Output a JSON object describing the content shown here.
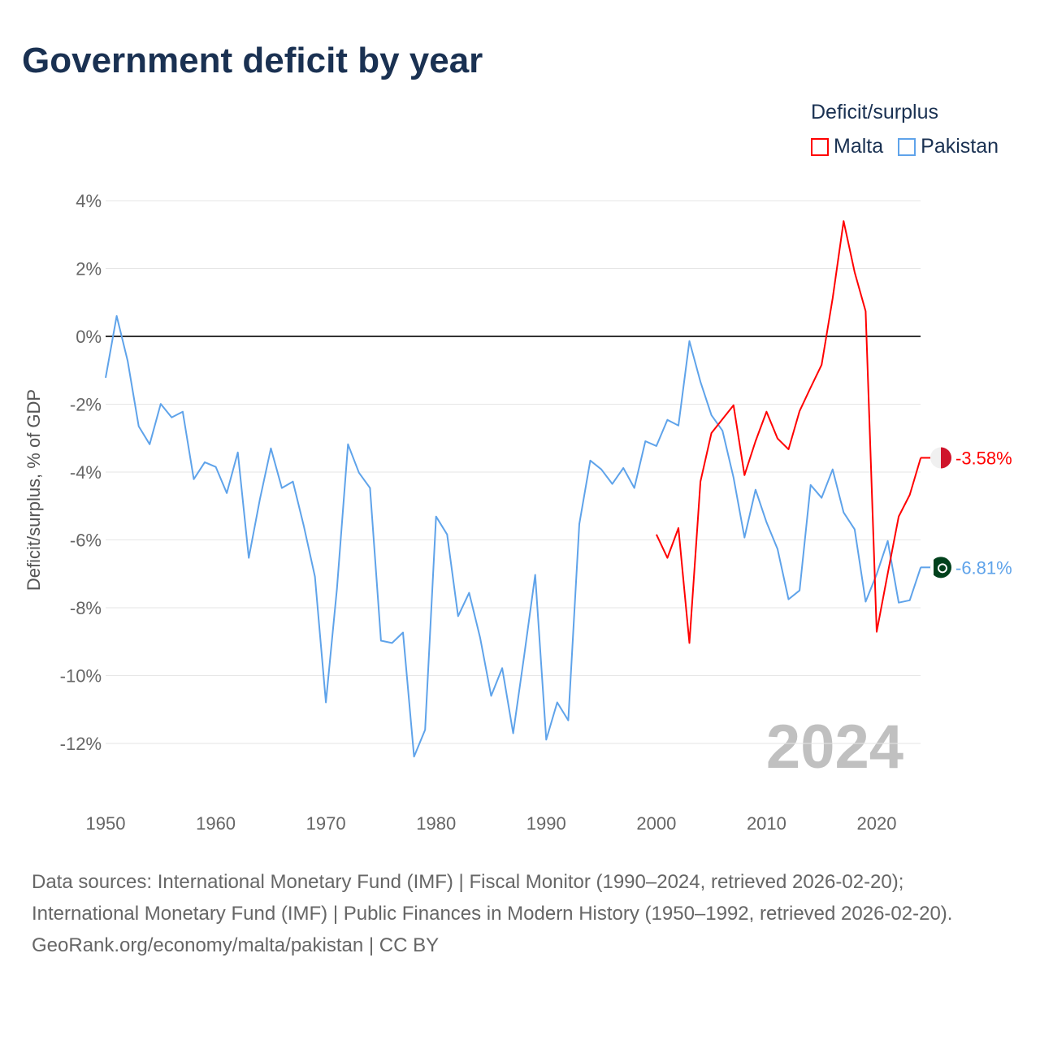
{
  "title": "Government deficit by year",
  "legend": {
    "title": "Deficit/surplus",
    "items": [
      {
        "name": "Malta",
        "color": "#ff0000"
      },
      {
        "name": "Pakistan",
        "color": "#5fa3ea"
      }
    ]
  },
  "watermark_year": "2024",
  "footer": {
    "sources": "Data sources: International Monetary Fund (IMF) | Fiscal Monitor (1990–2024, retrieved 2026-02-20); International Monetary Fund (IMF) | Public Finances in Modern History (1950–1992, retrieved 2026-02-20).",
    "credit": "GeoRank.org/economy/malta/pakistan | CC BY"
  },
  "chart_data": {
    "type": "line",
    "title": "Government deficit by year",
    "xlabel": "",
    "ylabel": "Deficit/surplus, % of GDP",
    "xlim": [
      1950,
      2024
    ],
    "ylim": [
      -13,
      4.5
    ],
    "xticks": [
      1950,
      1960,
      1970,
      1980,
      1990,
      2000,
      2010,
      2020
    ],
    "yticks": [
      4,
      2,
      0,
      -2,
      -4,
      -6,
      -8,
      -10,
      -12
    ],
    "ytick_labels": [
      "4%",
      "2%",
      "0%",
      "-2%",
      "-4%",
      "-6%",
      "-8%",
      "-10%",
      "-12%"
    ],
    "legend_position": "top-right",
    "series": [
      {
        "name": "Malta",
        "color": "#ff0000",
        "start_year": 2000,
        "end_label": "-3.58%",
        "values": [
          -5.84,
          -6.53,
          -5.65,
          -9.04,
          -4.28,
          -2.85,
          -2.44,
          -2.03,
          -4.09,
          -3.09,
          -2.22,
          -3.01,
          -3.33,
          -2.2,
          -1.51,
          -0.84,
          1.12,
          3.4,
          1.89,
          0.74,
          -8.71,
          -6.99,
          -5.31,
          -4.67,
          -3.58
        ]
      },
      {
        "name": "Pakistan",
        "color": "#5fa3ea",
        "start_year": 1950,
        "end_label": "-6.81%",
        "values": [
          -1.22,
          0.6,
          -0.72,
          -2.65,
          -3.18,
          -1.99,
          -2.39,
          -2.22,
          -4.21,
          -3.71,
          -3.85,
          -4.62,
          -3.42,
          -6.53,
          -4.81,
          -3.3,
          -4.47,
          -4.28,
          -5.6,
          -7.08,
          -10.79,
          -7.44,
          -3.18,
          -4.02,
          -4.47,
          -8.97,
          -9.04,
          -8.73,
          -12.39,
          -11.6,
          -5.31,
          -5.84,
          -8.25,
          -7.56,
          -8.88,
          -10.6,
          -9.78,
          -11.7,
          -9.4,
          -7.03,
          -11.89,
          -10.79,
          -11.32,
          -5.53,
          -3.66,
          -3.92,
          -4.35,
          -3.88,
          -4.47,
          -3.09,
          -3.23,
          -2.46,
          -2.63,
          -0.14,
          -1.34,
          -2.32,
          -2.78,
          -4.16,
          -5.93,
          -4.52,
          -5.48,
          -6.27,
          -7.75,
          -7.49,
          -4.38,
          -4.76,
          -3.92,
          -5.19,
          -5.69,
          -7.82,
          -7.01,
          -6.03,
          -7.85,
          -7.78,
          -6.81
        ]
      }
    ]
  }
}
